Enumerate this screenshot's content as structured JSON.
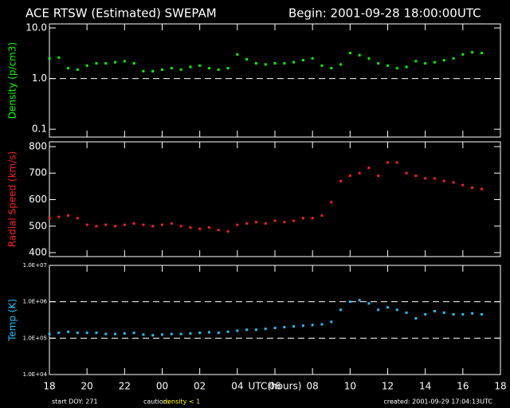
{
  "header": {
    "title": "ACE RTSW (Estimated) SWEPAM",
    "begin": "Begin: 2001-09-28 18:00:00UTC"
  },
  "footer": {
    "start": "start DOY: 271",
    "caution": "caution:",
    "caution_note": "density < 1",
    "created": "created: 2001-09-29 17:04:13UTC"
  },
  "chart_data": [
    {
      "type": "scatter",
      "y_label": "Density (p/cm3)",
      "log_y": true,
      "color": "#00ff00",
      "ylim": [
        0.07,
        12
      ],
      "yticks": [
        {
          "value": 10,
          "label": "10.0"
        },
        {
          "value": 1,
          "label": "1.0"
        },
        0.1
      ],
      "reference_lines": [
        1
      ],
      "xlim": [
        0,
        24
      ],
      "xticks": [
        0,
        2,
        4,
        6,
        8,
        10,
        12,
        14,
        16,
        18,
        20,
        22,
        24
      ],
      "x": [
        0,
        0.5,
        1,
        1.5,
        2,
        2.5,
        3,
        3.5,
        4,
        4.5,
        5,
        5.5,
        6,
        6.5,
        7,
        7.5,
        8,
        8.5,
        9,
        9.5,
        10,
        10.5,
        11,
        11.5,
        12,
        12.5,
        13,
        13.5,
        14,
        14.5,
        15,
        15.5,
        16,
        16.5,
        17,
        17.5,
        18,
        18.5,
        19,
        19.5,
        20,
        20.5,
        21,
        21.5,
        22,
        22.5,
        23
      ],
      "values": [
        2.5,
        2.6,
        1.6,
        1.5,
        1.8,
        2.0,
        2.0,
        2.1,
        2.2,
        2.0,
        1.4,
        1.4,
        1.5,
        1.6,
        1.5,
        1.7,
        1.8,
        1.6,
        1.5,
        1.6,
        3.0,
        2.4,
        2.0,
        1.9,
        2.0,
        2.0,
        2.1,
        2.3,
        2.5,
        1.8,
        1.6,
        1.9,
        3.2,
        2.9,
        2.5,
        2.0,
        1.8,
        1.6,
        1.7,
        2.2,
        2.0,
        2.1,
        2.3,
        2.5,
        3.0,
        3.3,
        3.2
      ]
    },
    {
      "type": "scatter",
      "y_label": "Radial Speed (km/s)",
      "log_y": false,
      "color": "#ff2020",
      "ylim": [
        385,
        818
      ],
      "yticks": [
        400,
        500,
        600,
        700,
        800
      ],
      "reference_lines": [],
      "xlim": [
        0,
        24
      ],
      "xticks": [
        0,
        2,
        4,
        6,
        8,
        10,
        12,
        14,
        16,
        18,
        20,
        22,
        24
      ],
      "x": [
        0,
        0.5,
        1,
        1.5,
        2,
        2.5,
        3,
        3.5,
        4,
        4.5,
        5,
        5.5,
        6,
        6.5,
        7,
        7.5,
        8,
        8.5,
        9,
        9.5,
        10,
        10.5,
        11,
        11.5,
        12,
        12.5,
        13,
        13.5,
        14,
        14.5,
        15,
        15.5,
        16,
        16.5,
        17,
        17.5,
        18,
        18.5,
        19,
        19.5,
        20,
        20.5,
        21,
        21.5,
        22,
        22.5,
        23
      ],
      "values": [
        530,
        535,
        540,
        530,
        505,
        500,
        505,
        500,
        505,
        510,
        505,
        500,
        505,
        510,
        500,
        495,
        490,
        495,
        485,
        480,
        505,
        510,
        515,
        510,
        520,
        515,
        520,
        530,
        530,
        540,
        590,
        670,
        690,
        700,
        720,
        690,
        740,
        740,
        700,
        690,
        680,
        680,
        670,
        665,
        655,
        645,
        640
      ]
    },
    {
      "type": "scatter",
      "y_label": "Temp (K)",
      "log_y": true,
      "color": "#20c0ff",
      "ylim": [
        10000,
        10000000
      ],
      "yticks": [
        {
          "value": 10000000,
          "label": "1.0E+07"
        },
        {
          "value": 1000000,
          "label": "1.0E+06"
        },
        {
          "value": 100000,
          "label": "1.0E+05"
        },
        {
          "value": 10000,
          "label": "1.0E+04"
        }
      ],
      "reference_lines": [
        1000000,
        100000
      ],
      "xlim": [
        0,
        24
      ],
      "xticks": [
        {
          "value": 0,
          "label": "18"
        },
        {
          "value": 2,
          "label": "20"
        },
        {
          "value": 4,
          "label": "22"
        },
        {
          "value": 6,
          "label": "00"
        },
        {
          "value": 8,
          "label": "02"
        },
        {
          "value": 10,
          "label": "04"
        },
        {
          "value": 12,
          "label": "06"
        },
        {
          "value": 14,
          "label": "08"
        },
        {
          "value": 16,
          "label": "10"
        },
        {
          "value": 18,
          "label": "12"
        },
        {
          "value": 20,
          "label": "14"
        },
        {
          "value": 22,
          "label": "16"
        },
        {
          "value": 24,
          "label": "18"
        }
      ],
      "x_label": "UTC(hours)",
      "x": [
        0,
        0.5,
        1,
        1.5,
        2,
        2.5,
        3,
        3.5,
        4,
        4.5,
        5,
        5.5,
        6,
        6.5,
        7,
        7.5,
        8,
        8.5,
        9,
        9.5,
        10,
        10.5,
        11,
        11.5,
        12,
        12.5,
        13,
        13.5,
        14,
        14.5,
        15,
        15.5,
        16,
        16.5,
        17,
        17.5,
        18,
        18.5,
        19,
        19.5,
        20,
        20.5,
        21,
        21.5,
        22,
        22.5,
        23
      ],
      "values": [
        130000,
        140000,
        150000,
        140000,
        140000,
        140000,
        130000,
        130000,
        135000,
        140000,
        125000,
        120000,
        125000,
        130000,
        130000,
        135000,
        140000,
        145000,
        140000,
        150000,
        160000,
        170000,
        170000,
        180000,
        190000,
        200000,
        210000,
        220000,
        230000,
        240000,
        280000,
        600000,
        1000000,
        1100000,
        900000,
        600000,
        700000,
        600000,
        500000,
        350000,
        450000,
        550000,
        500000,
        450000,
        450000,
        480000,
        450000
      ]
    }
  ]
}
